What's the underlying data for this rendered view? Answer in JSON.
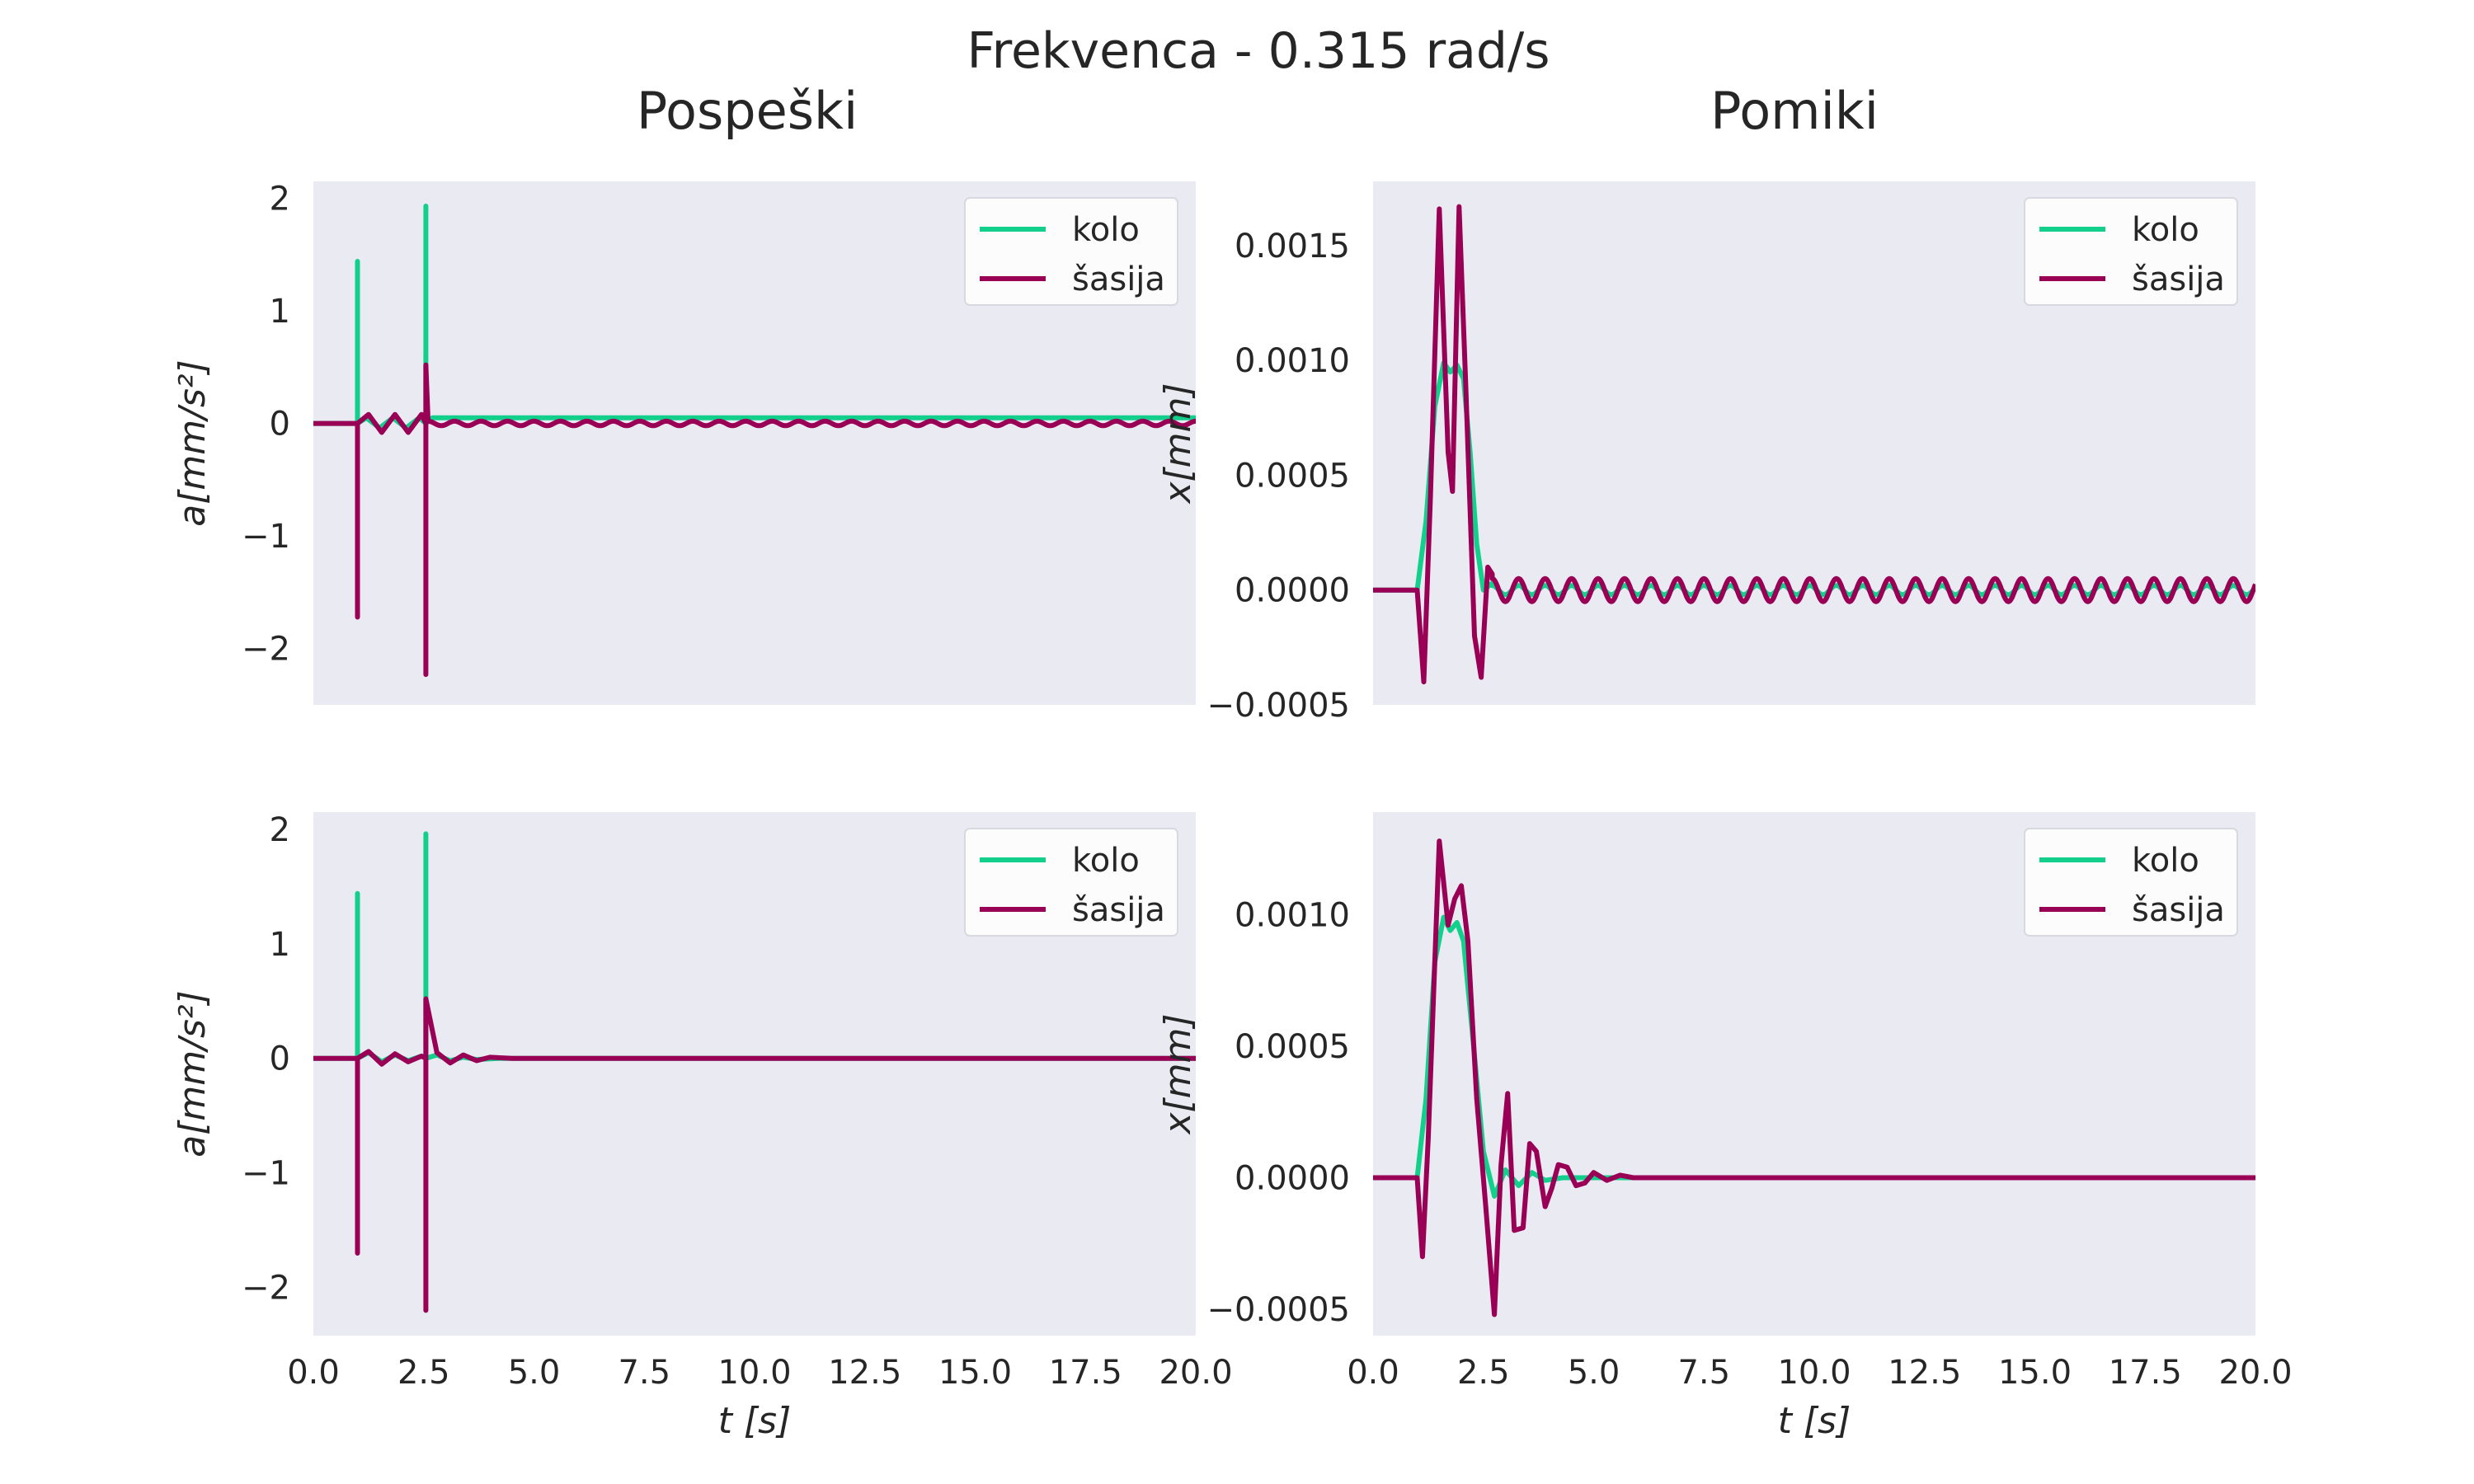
{
  "figure": {
    "suptitle": "Frekvenca - 0.315 rad/s",
    "column_titles": [
      "Pospeški",
      "Pomiki"
    ]
  },
  "chart_data": [
    {
      "type": "line",
      "panel": "top-left",
      "ylabel": "a[mm/s²]",
      "xlabel": "",
      "xlim": [
        0,
        20
      ],
      "ylim": [
        -2.5,
        2.15
      ],
      "xticks": [
        0,
        2.5,
        5,
        7.5,
        10,
        12.5,
        15,
        17.5,
        20
      ],
      "xtick_labels": [],
      "yticks": [
        -2,
        -1,
        0,
        1,
        2
      ],
      "ytick_labels": [
        "−2",
        "−1",
        "0",
        "1",
        "2"
      ],
      "grid": false,
      "legend": "top-right",
      "series": [
        {
          "name": "kolo",
          "color": "#12d08c",
          "x": [
            0,
            1,
            1,
            1,
            1.2,
            1.5,
            1.8,
            2.1,
            2.4,
            2.55,
            2.55,
            2.55,
            2.7,
            3,
            3.3,
            3.6,
            3.9,
            4.2,
            20
          ],
          "y": [
            0,
            0,
            1.44,
            0,
            0.05,
            -0.04,
            0.05,
            -0.04,
            0.05,
            0,
            1.93,
            0,
            0.05,
            0.05,
            0.05,
            0.05,
            0.05,
            0.05,
            0.05
          ]
        },
        {
          "name": "šasija",
          "color": "#990055",
          "x": [
            0,
            1,
            1,
            1,
            1.25,
            1.55,
            1.85,
            2.15,
            2.45,
            2.55,
            2.55,
            2.55,
            20
          ],
          "y": [
            0,
            0,
            -1.72,
            0,
            0.08,
            -0.08,
            0.08,
            -0.08,
            0.08,
            0,
            -2.23,
            0.52,
            0
          ],
          "oscillation": {
            "from": 2.6,
            "to": 20,
            "amplitude": 0.02,
            "period_s": 0.6
          }
        }
      ]
    },
    {
      "type": "line",
      "panel": "top-right",
      "ylabel": "x[mm]",
      "xlabel": "",
      "xlim": [
        0,
        20
      ],
      "ylim": [
        -0.0005,
        0.00178
      ],
      "xticks": [
        0,
        2.5,
        5,
        7.5,
        10,
        12.5,
        15,
        17.5,
        20
      ],
      "xtick_labels": [],
      "yticks": [
        -0.0005,
        0,
        0.0005,
        0.001,
        0.0015
      ],
      "ytick_labels": [
        "−0.0005",
        "0.0000",
        "0.0005",
        "0.0010",
        "0.0015"
      ],
      "grid": false,
      "legend": "top-right",
      "series": [
        {
          "name": "kolo",
          "color": "#12d08c",
          "x": [
            0,
            1,
            1.2,
            1.4,
            1.6,
            1.75,
            1.9,
            2.05,
            2.2,
            2.35,
            2.5,
            2.7,
            20
          ],
          "y": [
            0,
            0,
            0.0003,
            0.0008,
            0.00099,
            0.00095,
            0.00098,
            0.00092,
            0.0006,
            0.0002,
            0,
            3e-05,
            0
          ],
          "oscillation": {
            "from": 2.7,
            "to": 20,
            "amplitude": 2e-05,
            "period_s": 0.6
          }
        },
        {
          "name": "šasija",
          "color": "#990055",
          "x": [
            0,
            1,
            1.15,
            1.3,
            1.5,
            1.7,
            1.8,
            1.95,
            2.1,
            2.3,
            2.45,
            2.6,
            2.7
          ],
          "y": [
            0,
            0,
            -0.0004,
            0.0004,
            0.00166,
            0.0006,
            0.00043,
            0.00167,
            0.0009,
            -0.0002,
            -0.00038,
            0.0001,
            7e-05
          ],
          "oscillation": {
            "from": 2.7,
            "to": 20,
            "amplitude": 5e-05,
            "period_s": 0.6
          }
        }
      ]
    },
    {
      "type": "line",
      "panel": "bottom-left",
      "ylabel": "a[mm/s²]",
      "xlabel": "t [s]",
      "xlim": [
        0,
        20
      ],
      "ylim": [
        -2.42,
        2.15
      ],
      "xticks": [
        0,
        2.5,
        5,
        7.5,
        10,
        12.5,
        15,
        17.5,
        20
      ],
      "xtick_labels": [
        "0.0",
        "2.5",
        "5.0",
        "7.5",
        "10.0",
        "12.5",
        "15.0",
        "17.5",
        "20.0"
      ],
      "yticks": [
        -2,
        -1,
        0,
        1,
        2
      ],
      "ytick_labels": [
        "−2",
        "−1",
        "0",
        "1",
        "2"
      ],
      "grid": false,
      "legend": "top-right",
      "series": [
        {
          "name": "kolo",
          "color": "#12d08c",
          "x": [
            0,
            1,
            1,
            1,
            1.25,
            1.55,
            1.85,
            2.15,
            2.45,
            2.55,
            2.55,
            2.55,
            2.8,
            3.1,
            3.4,
            3.7,
            4.2,
            20
          ],
          "y": [
            0,
            0,
            1.44,
            0,
            0.05,
            -0.03,
            0.03,
            -0.02,
            0.02,
            0,
            1.96,
            0,
            0.03,
            -0.02,
            0.01,
            -0.01,
            0,
            0
          ]
        },
        {
          "name": "šasija",
          "color": "#990055",
          "x": [
            0,
            1,
            1,
            1,
            1.25,
            1.55,
            1.85,
            2.15,
            2.45,
            2.55,
            2.55,
            2.55,
            2.8,
            3.1,
            3.4,
            3.7,
            4.0,
            4.5,
            5.0,
            20
          ],
          "y": [
            0,
            0,
            -1.7,
            0,
            0.06,
            -0.05,
            0.04,
            -0.03,
            0.02,
            0,
            -2.2,
            0.52,
            0.05,
            -0.04,
            0.03,
            -0.02,
            0.01,
            0,
            0,
            0
          ]
        }
      ]
    },
    {
      "type": "line",
      "panel": "bottom-right",
      "ylabel": "x[mm]",
      "xlabel": "t [s]",
      "xlim": [
        0,
        20
      ],
      "ylim": [
        -0.0006,
        0.00139
      ],
      "xticks": [
        0,
        2.5,
        5,
        7.5,
        10,
        12.5,
        15,
        17.5,
        20
      ],
      "xtick_labels": [
        "0.0",
        "2.5",
        "5.0",
        "7.5",
        "10.0",
        "12.5",
        "15.0",
        "17.5",
        "20.0"
      ],
      "yticks": [
        -0.0005,
        0,
        0.0005,
        0.001
      ],
      "ytick_labels": [
        "−0.0005",
        "0.0000",
        "0.0005",
        "0.0010"
      ],
      "grid": false,
      "legend": "top-right",
      "series": [
        {
          "name": "kolo",
          "color": "#12d08c",
          "x": [
            0,
            1,
            1.2,
            1.4,
            1.6,
            1.75,
            1.9,
            2.05,
            2.25,
            2.5,
            2.75,
            3.0,
            3.3,
            3.6,
            3.9,
            4.3,
            5.0,
            20
          ],
          "y": [
            0,
            0,
            0.0003,
            0.00082,
            0.00099,
            0.00094,
            0.00097,
            0.0009,
            0.00055,
            0.0001,
            -7e-05,
            3e-05,
            -3e-05,
            2e-05,
            -1e-05,
            0,
            0,
            0
          ]
        },
        {
          "name": "šasija",
          "color": "#990055",
          "x": [
            0,
            1,
            1.12,
            1.25,
            1.5,
            1.7,
            1.85,
            2.0,
            2.15,
            2.35,
            2.55,
            2.75,
            2.9,
            3.05,
            3.2,
            3.4,
            3.55,
            3.7,
            3.9,
            4.05,
            4.2,
            4.4,
            4.6,
            4.8,
            5.0,
            5.3,
            5.6,
            5.9,
            6.2,
            7.0,
            20
          ],
          "y": [
            0,
            0,
            -0.0003,
            0.00015,
            0.00128,
            0.00096,
            0.00106,
            0.00111,
            0.0009,
            0.0003,
            -0.0001,
            -0.00052,
            5e-05,
            0.00032,
            -0.0002,
            -0.00019,
            0.00013,
            0.0001,
            -0.00011,
            -4e-05,
            5e-05,
            4e-05,
            -3e-05,
            -2e-05,
            2e-05,
            -1e-05,
            1e-05,
            0,
            0,
            0,
            0
          ]
        }
      ]
    }
  ]
}
